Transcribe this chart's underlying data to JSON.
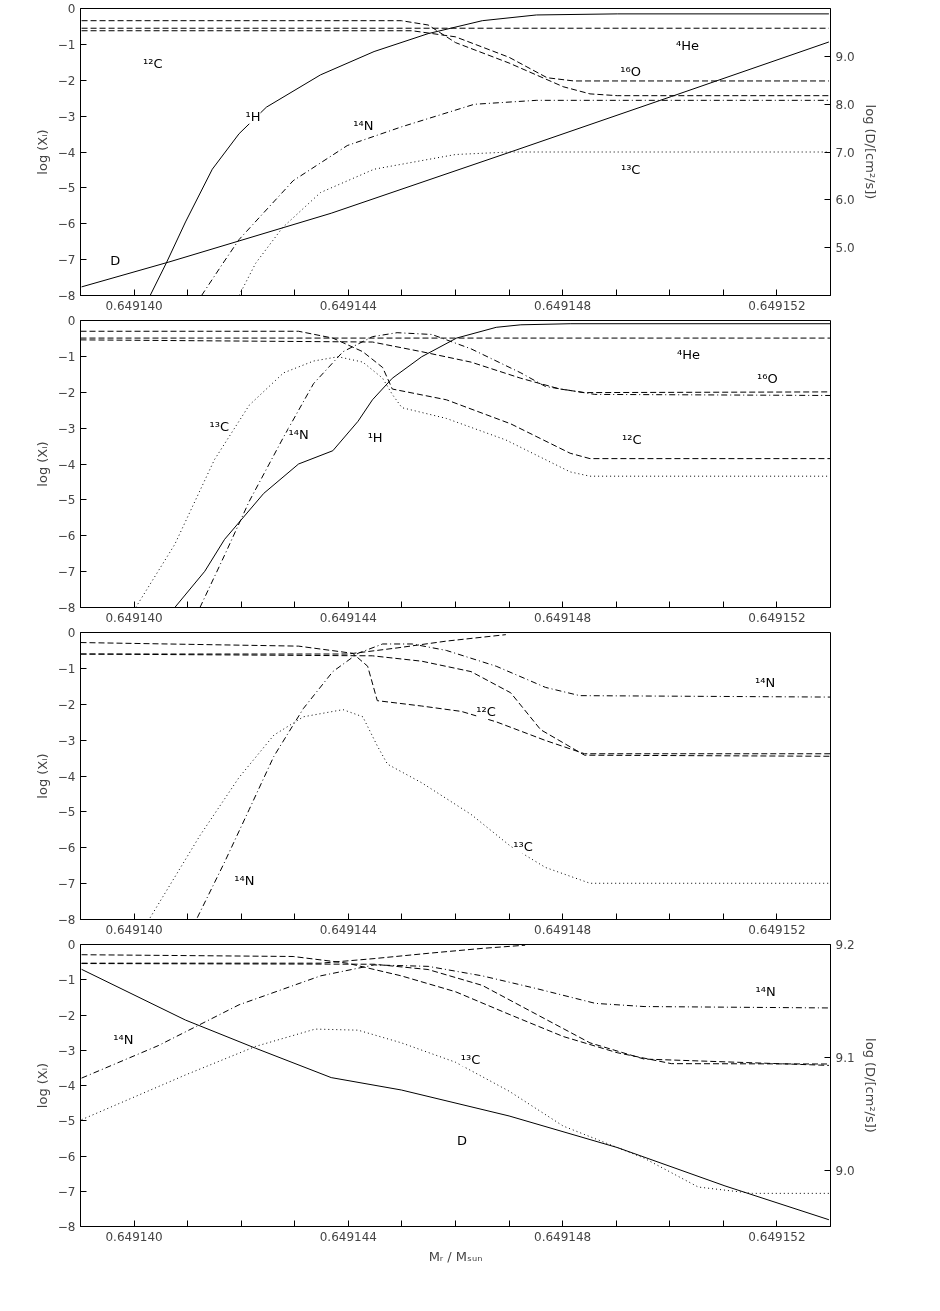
{
  "chart_data": [
    {
      "type": "line",
      "ylabel": "log (Xᵢ)",
      "y2label": "log (D/[cm²/s])",
      "xlim": [
        0.649139,
        0.649153
      ],
      "ylim": [
        -8,
        0
      ],
      "y2lim": [
        4.0,
        10.0
      ],
      "xticks": [
        {
          "value": 0.64914,
          "label": "0.649140"
        },
        {
          "value": 0.649141,
          "label": null
        },
        {
          "value": 0.649142,
          "label": null
        },
        {
          "value": 0.649143,
          "label": null
        },
        {
          "value": 0.649144,
          "label": "0.649144"
        },
        {
          "value": 0.649145,
          "label": null
        },
        {
          "value": 0.649146,
          "label": null
        },
        {
          "value": 0.649147,
          "label": null
        },
        {
          "value": 0.649148,
          "label": "0.649148"
        },
        {
          "value": 0.649149,
          "label": null
        },
        {
          "value": 0.64915,
          "label": null
        },
        {
          "value": 0.649151,
          "label": null
        },
        {
          "value": 0.649152,
          "label": "0.649152"
        }
      ],
      "yticks": [
        0,
        -1,
        -2,
        -3,
        -4,
        -5,
        -6,
        -7,
        -8
      ],
      "y2ticks": [
        {
          "value": 5,
          "label": "5.0"
        },
        {
          "value": 6,
          "label": "6.0"
        },
        {
          "value": 7,
          "label": "7.0"
        },
        {
          "value": 8,
          "label": "8.0"
        },
        {
          "value": 9,
          "label": "9.0"
        }
      ],
      "series": [
        {
          "color": "#000000",
          "line_style": "solid",
          "axis": "y2",
          "x": [
            0.64913902,
            0.64914065,
            0.64914368,
            0.649147,
            0.64915003,
            0.64915297
          ],
          "values": [
            4.18,
            4.7,
            5.72,
            6.99,
            8.16,
            9.3
          ]
        },
        {
          "color": "#000000",
          "line_style": "solid",
          "x": [
            0.6491403,
            0.6491406,
            0.64914096,
            0.64914146,
            0.64914196,
            0.64914247,
            0.64914348,
            0.64914448,
            0.64914549,
            0.6491465,
            0.64914751,
            0.64914902,
            0.64915297
          ],
          "values": [
            -8.0,
            -7.1,
            -5.95,
            -4.48,
            -3.49,
            -2.75,
            -1.85,
            -1.2,
            -0.7,
            -0.34,
            -0.18,
            -0.15,
            -0.15
          ]
        },
        {
          "color": "#000000",
          "line_style": "dashed",
          "x": [
            0.64913902,
            0.64915297
          ],
          "values": [
            -0.55,
            -0.55
          ]
        },
        {
          "color": "#000000",
          "line_style": "dashed",
          "x": [
            0.64913902,
            0.64914499,
            0.64914549,
            0.649146,
            0.649147,
            0.64914801,
            0.64914851,
            0.64914902,
            0.64915297
          ],
          "values": [
            -0.34,
            -0.34,
            -0.46,
            -0.95,
            -1.52,
            -2.18,
            -2.38,
            -2.43,
            -2.43
          ]
        },
        {
          "color": "#000000",
          "line_style": "dashed",
          "x": [
            0.64913902,
            0.64914519,
            0.649146,
            0.649147,
            0.64914771,
            0.64914821,
            0.64915297
          ],
          "values": [
            -0.62,
            -0.62,
            -0.79,
            -1.36,
            -1.93,
            -2.02,
            -2.02
          ]
        },
        {
          "color": "#000000",
          "line_style": "dashdot",
          "x": [
            0.64914126,
            0.64914166,
            0.64914196,
            0.64914297,
            0.64914398,
            0.64914499,
            0.64914635,
            0.64914751,
            0.64915297
          ],
          "values": [
            -8,
            -7.1,
            -6.44,
            -4.8,
            -3.82,
            -3.3,
            -2.67,
            -2.56,
            -2.56
          ]
        },
        {
          "color": "#000000",
          "line_style": "dotted",
          "x": [
            0.64914196,
            0.64914227,
            0.64914277,
            0.64914348,
            0.64914448,
            0.649146,
            0.649147,
            0.64915297
          ],
          "values": [
            -8,
            -7.1,
            -6.11,
            -5.13,
            -4.48,
            -4.07,
            -4.0,
            -4.0
          ]
        }
      ],
      "annotations": [
        {
          "text": "¹²C",
          "x": 0.64914035,
          "y": -1.52
        },
        {
          "text": "⁴He",
          "x": 0.64915033,
          "y": -1.03
        },
        {
          "text": "¹⁶O",
          "x": 0.64914927,
          "y": -1.77
        },
        {
          "text": "¹H",
          "x": 0.64914222,
          "y": -3.0
        },
        {
          "text": "¹⁴N",
          "x": 0.64914428,
          "y": -3.25
        },
        {
          "text": "¹³C",
          "x": 0.64914927,
          "y": -4.48
        },
        {
          "text": "D",
          "x": 0.64913965,
          "y": -7.02
        }
      ]
    },
    {
      "type": "line",
      "ylabel": "log (Xᵢ)",
      "xlim": [
        0.649139,
        0.649153
      ],
      "ylim": [
        -8,
        0
      ],
      "xticks": [
        {
          "value": 0.64914,
          "label": "0.649140"
        },
        {
          "value": 0.649141,
          "label": null
        },
        {
          "value": 0.649142,
          "label": null
        },
        {
          "value": 0.649143,
          "label": null
        },
        {
          "value": 0.649144,
          "label": "0.649144"
        },
        {
          "value": 0.649145,
          "label": null
        },
        {
          "value": 0.649146,
          "label": null
        },
        {
          "value": 0.649147,
          "label": null
        },
        {
          "value": 0.649148,
          "label": "0.649148"
        },
        {
          "value": 0.649149,
          "label": null
        },
        {
          "value": 0.64915,
          "label": null
        },
        {
          "value": 0.649151,
          "label": null
        },
        {
          "value": 0.649152,
          "label": "0.649152"
        }
      ],
      "yticks": [
        0,
        -1,
        -2,
        -3,
        -4,
        -5,
        -6,
        -7,
        -8
      ],
      "series": [
        {
          "color": "#000000",
          "line_style": "solid",
          "x": [
            0.64914076,
            0.64914132,
            0.64914169,
            0.64914242,
            0.64914307,
            0.64914371,
            0.64914418,
            0.64914445,
            0.64914482,
            0.64914537,
            0.64914602,
            0.64914676,
            0.64914722,
            0.64914814,
            0.649153
          ],
          "values": [
            -8,
            -6.99,
            -6.1,
            -4.82,
            -4.0,
            -3.63,
            -2.81,
            -2.21,
            -1.61,
            -1.01,
            -0.49,
            -0.19,
            -0.12,
            -0.09,
            -0.09
          ]
        },
        {
          "color": "#000000",
          "line_style": "dashed",
          "x": [
            0.649139,
            0.649153
          ],
          "values": [
            -0.49,
            -0.49
          ]
        },
        {
          "color": "#000000",
          "line_style": "dotted",
          "x": [
            0.64914003,
            0.64914076,
            0.6491415,
            0.64914215,
            0.64914279,
            0.64914335,
            0.64914381,
            0.64914427,
            0.64914464,
            0.64914482,
            0.649145,
            0.64914583,
            0.64914694,
            0.64914814,
            0.64914851,
            0.649153
          ],
          "values": [
            -8,
            -6.24,
            -3.88,
            -2.36,
            -1.46,
            -1.13,
            -1.01,
            -1.16,
            -1.61,
            -2.06,
            -2.43,
            -2.73,
            -3.33,
            -4.22,
            -4.34,
            -4.34
          ]
        },
        {
          "color": "#000000",
          "line_style": "dashed",
          "x": [
            0.649139,
            0.64914307,
            0.64914371,
            0.64914427,
            0.64914464,
            0.64914482,
            0.64914583,
            0.64914703,
            0.64914814,
            0.64914851,
            0.649153
          ],
          "values": [
            -0.3,
            -0.3,
            -0.49,
            -0.87,
            -1.31,
            -1.91,
            -2.21,
            -2.88,
            -3.7,
            -3.85,
            -3.85
          ]
        },
        {
          "color": "#000000",
          "line_style": "dashed",
          "x": [
            0.649139,
            0.64914445,
            0.64914537,
            0.64914629,
            0.64914722,
            0.64914795,
            0.64914841,
            0.649153
          ],
          "values": [
            -0.54,
            -0.6,
            -0.87,
            -1.16,
            -1.61,
            -1.91,
            -2.01,
            -1.99
          ]
        },
        {
          "color": "#000000",
          "line_style": "dashdot",
          "x": [
            0.64914123,
            0.64914169,
            0.64914215,
            0.64914279,
            0.64914335,
            0.6491439,
            0.64914445,
            0.64914491,
            0.64914556,
            0.64914629,
            0.64914722,
            0.64914768,
            0.6491486,
            0.649153
          ],
          "values": [
            -8,
            -6.54,
            -5.04,
            -3.25,
            -1.76,
            -0.87,
            -0.45,
            -0.34,
            -0.39,
            -0.79,
            -1.46,
            -1.84,
            -2.06,
            -2.09
          ]
        }
      ],
      "annotations": [
        {
          "text": "¹³C",
          "x": 0.64914159,
          "y": -2.96
        },
        {
          "text": "¹⁴N",
          "x": 0.64914307,
          "y": -3.18
        },
        {
          "text": "¹H",
          "x": 0.6491445,
          "y": -3.25
        },
        {
          "text": "⁴He",
          "x": 0.64915035,
          "y": -0.94
        },
        {
          "text": "¹⁶O",
          "x": 0.64915182,
          "y": -1.61
        },
        {
          "text": "¹²C",
          "x": 0.64914929,
          "y": -3.33
        }
      ]
    },
    {
      "type": "line",
      "ylabel": "log (Xᵢ)",
      "xlim": [
        0.649139,
        0.649153
      ],
      "ylim": [
        -8,
        0
      ],
      "xticks": [
        {
          "value": 0.64914,
          "label": "0.649140"
        },
        {
          "value": 0.649141,
          "label": null
        },
        {
          "value": 0.649142,
          "label": null
        },
        {
          "value": 0.649143,
          "label": null
        },
        {
          "value": 0.649144,
          "label": "0.649144"
        },
        {
          "value": 0.649145,
          "label": null
        },
        {
          "value": 0.649146,
          "label": null
        },
        {
          "value": 0.649147,
          "label": null
        },
        {
          "value": 0.649148,
          "label": "0.649148"
        },
        {
          "value": 0.649149,
          "label": null
        },
        {
          "value": 0.64915,
          "label": null
        },
        {
          "value": 0.649151,
          "label": null
        },
        {
          "value": 0.649152,
          "label": "0.649152"
        }
      ],
      "yticks": [
        0,
        -1,
        -2,
        -3,
        -4,
        -5,
        -6,
        -7,
        -8
      ],
      "series": [
        {
          "color": "#000000",
          "line_style": "dashdot",
          "x": [
            0.64914118,
            0.64914169,
            0.64914215,
            0.64914261,
            0.64914316,
            0.64914371,
            0.64914418,
            0.64914464,
            0.64914519,
            0.64914583,
            0.64914676,
            0.64914768,
            0.64914832,
            0.649153
          ],
          "values": [
            -7.95,
            -6.4,
            -4.93,
            -3.45,
            -2.12,
            -1.09,
            -0.58,
            -0.32,
            -0.32,
            -0.5,
            -0.94,
            -1.53,
            -1.76,
            -1.8
          ]
        },
        {
          "color": "#000000",
          "line_style": "dashed",
          "x": [
            0.649139,
            0.64914399,
            0.64914491,
            0.64914583,
            0.64914694
          ],
          "values": [
            -0.6,
            -0.6,
            -0.43,
            -0.24,
            -0.06
          ]
        },
        {
          "color": "#000000",
          "line_style": "dashed",
          "x": [
            0.649139,
            0.64914307,
            0.64914408,
            0.64914436,
            0.64914454,
            0.64914537,
            0.64914611,
            0.64914676,
            0.64914768,
            0.64914841,
            0.649153
          ],
          "values": [
            -0.28,
            -0.38,
            -0.58,
            -0.94,
            -1.9,
            -2.05,
            -2.2,
            -2.49,
            -3.01,
            -3.38,
            -3.38
          ]
        },
        {
          "color": "#000000",
          "line_style": "dashed",
          "x": [
            0.649139,
            0.64914445,
            0.64914537,
            0.64914629,
            0.64914703,
            0.64914759,
            0.64914841,
            0.649153
          ],
          "values": [
            -0.6,
            -0.65,
            -0.8,
            -1.09,
            -1.68,
            -2.71,
            -3.42,
            -3.45
          ]
        },
        {
          "color": "#000000",
          "line_style": "dotted",
          "x": [
            0.6491403,
            0.64914123,
            0.64914196,
            0.64914261,
            0.64914316,
            0.6491439,
            0.64914427,
            0.64914454,
            0.64914473,
            0.64914537,
            0.64914629,
            0.64914703,
            0.64914768,
            0.64914851,
            0.649153
          ],
          "values": [
            -7.95,
            -5.66,
            -4.04,
            -2.86,
            -2.35,
            -2.15,
            -2.35,
            -3.16,
            -3.67,
            -4.19,
            -5.07,
            -5.96,
            -6.55,
            -6.99,
            -6.99
          ]
        }
      ],
      "annotations": [
        {
          "text": "¹⁴N",
          "x": 0.64915178,
          "y": -1.39
        },
        {
          "text": "¹²C",
          "x": 0.64914657,
          "y": -2.2
        },
        {
          "text": "¹³C",
          "x": 0.64914726,
          "y": -5.96
        },
        {
          "text": "¹⁴N",
          "x": 0.64914206,
          "y": -6.92
        }
      ]
    },
    {
      "type": "line",
      "xlabel": "Mᵣ / Mₛᵤₙ",
      "ylabel": "log (Xᵢ)",
      "y2label": "log (D/[cm²/s])",
      "xlim": [
        0.649139,
        0.649153
      ],
      "ylim": [
        -8,
        0
      ],
      "y2lim": [
        8.95,
        9.2
      ],
      "xticks": [
        {
          "value": 0.64914,
          "label": "0.649140"
        },
        {
          "value": 0.649141,
          "label": null
        },
        {
          "value": 0.649142,
          "label": null
        },
        {
          "value": 0.649143,
          "label": null
        },
        {
          "value": 0.649144,
          "label": "0.649144"
        },
        {
          "value": 0.649145,
          "label": null
        },
        {
          "value": 0.649146,
          "label": null
        },
        {
          "value": 0.649147,
          "label": null
        },
        {
          "value": 0.649148,
          "label": "0.649148"
        },
        {
          "value": 0.649149,
          "label": null
        },
        {
          "value": 0.64915,
          "label": null
        },
        {
          "value": 0.649151,
          "label": null
        },
        {
          "value": 0.649152,
          "label": "0.649152"
        }
      ],
      "yticks": [
        0,
        -1,
        -2,
        -3,
        -4,
        -5,
        -6,
        -7,
        -8
      ],
      "y2ticks": [
        {
          "value": 9.0,
          "label": "9.0"
        },
        {
          "value": 9.1,
          "label": "9.1"
        },
        {
          "value": 9.2,
          "label": "9.2"
        }
      ],
      "series": [
        {
          "color": "#000000",
          "line_style": "solid",
          "axis": "y2",
          "x": [
            0.64913902,
            0.64914096,
            0.64914227,
            0.64914368,
            0.64914499,
            0.649147,
            0.64914902,
            0.64915103,
            0.64915297
          ],
          "values": [
            9.178,
            9.133,
            9.108,
            9.082,
            9.071,
            9.048,
            9.02,
            8.986,
            8.956
          ]
        },
        {
          "color": "#000000",
          "line_style": "dashdot",
          "x": [
            0.64913902,
            0.64914045,
            0.64914196,
            0.64914348,
            0.64914448,
            0.64914549,
            0.6491465,
            0.64914751,
            0.64914861,
            0.64914952,
            0.64915297
          ],
          "values": [
            -3.79,
            -2.87,
            -1.71,
            -0.89,
            -0.58,
            -0.62,
            -0.89,
            -1.25,
            -1.67,
            -1.76,
            -1.8
          ]
        },
        {
          "color": "#000000",
          "line_style": "dashed",
          "x": [
            0.64913902,
            0.64914348,
            0.64914448,
            0.64914549,
            0.6491465,
            0.6491473
          ],
          "values": [
            -0.53,
            -0.53,
            -0.4,
            -0.25,
            -0.11,
            -0.02
          ]
        },
        {
          "color": "#000000",
          "line_style": "dashed",
          "x": [
            0.64913902,
            0.64914297,
            0.64914398,
            0.64914499,
            0.649146,
            0.649147,
            0.64914801,
            0.64914902,
            0.64915003,
            0.64915297
          ],
          "values": [
            -0.29,
            -0.34,
            -0.53,
            -0.89,
            -1.34,
            -1.98,
            -2.61,
            -3.07,
            -3.38,
            -3.39
          ]
        },
        {
          "color": "#000000",
          "line_style": "dashed",
          "x": [
            0.64913902,
            0.64914448,
            0.64914549,
            0.6491465,
            0.64914751,
            0.64914851,
            0.64914952,
            0.64915297
          ],
          "values": [
            -0.54,
            -0.56,
            -0.71,
            -1.16,
            -1.98,
            -2.79,
            -3.25,
            -3.43
          ]
        },
        {
          "color": "#000000",
          "line_style": "dotted",
          "x": [
            0.64913902,
            0.64914096,
            0.64914227,
            0.64914338,
            0.64914418,
            0.64914499,
            0.649146,
            0.649147,
            0.64914801,
            0.64914952,
            0.64915053,
            0.64915154,
            0.64915297
          ],
          "values": [
            -4.97,
            -3.7,
            -2.89,
            -2.4,
            -2.43,
            -2.79,
            -3.34,
            -4.16,
            -5.15,
            -6.06,
            -6.88,
            -7.06,
            -7.06
          ]
        }
      ],
      "annotations": [
        {
          "text": "¹⁴N",
          "x": 0.6491398,
          "y": -2.7
        },
        {
          "text": "¹⁴N",
          "x": 0.64915179,
          "y": -1.34
        },
        {
          "text": "¹³C",
          "x": 0.64914628,
          "y": -3.25
        },
        {
          "text": "D",
          "x": 0.64914612,
          "y": -5.55
        }
      ]
    }
  ]
}
